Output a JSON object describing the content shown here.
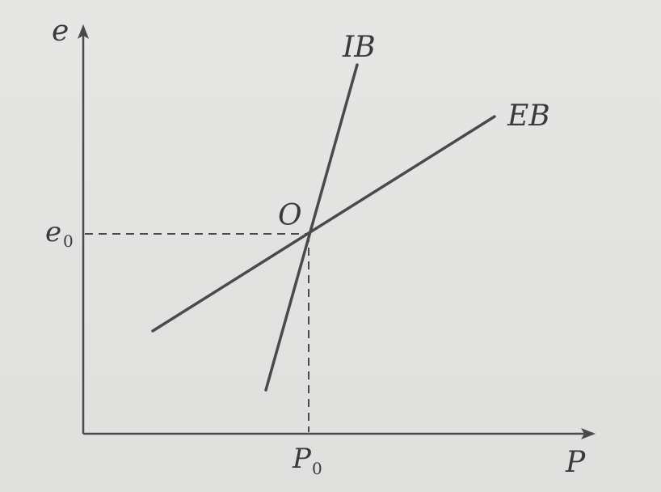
{
  "diagram": {
    "axes": {
      "y_label": "e",
      "x_label": "P"
    },
    "curves": [
      {
        "name": "IB"
      },
      {
        "name": "EB"
      }
    ],
    "intersection": {
      "label": "O",
      "x_label": "P",
      "x_sub": "0",
      "y_label": "e",
      "y_sub": "0"
    },
    "colors": {
      "line": "#4a4a4a",
      "background": "#e4e4e2"
    }
  }
}
